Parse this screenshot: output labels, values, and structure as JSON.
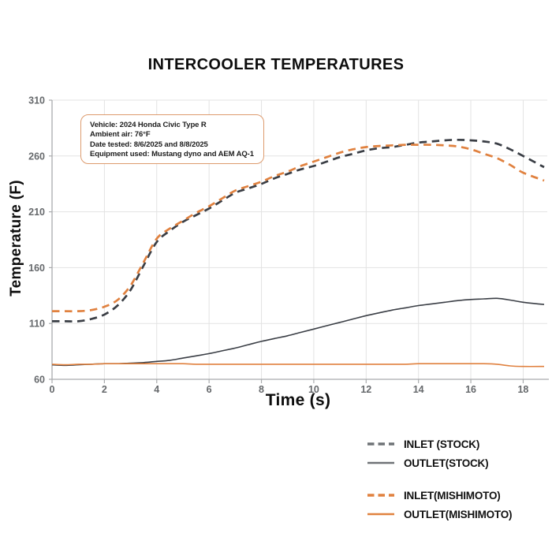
{
  "title": "INTERCOOLER TEMPERATURES",
  "annotation_box": {
    "lines": [
      "Vehicle: 2024 Honda Civic Type R",
      "Ambient air: 76°F",
      "Date tested: 8/6/2025 and 8/8/2025",
      "Equipment used: Mustang dyno and AEM AQ-1"
    ],
    "border_color": "#dd9b6e"
  },
  "chart_data": {
    "type": "line",
    "title": "INTERCOOLER TEMPERATURES",
    "xlabel": "Time (s)",
    "ylabel": "Temperature (F)",
    "xlim": [
      0,
      18.8
    ],
    "ylim": [
      60,
      310
    ],
    "x_ticks": [
      0,
      2,
      4,
      6,
      8,
      10,
      12,
      14,
      16,
      18
    ],
    "y_ticks": [
      60,
      110,
      160,
      210,
      260,
      310
    ],
    "grid": true,
    "grid_color": "#e3e3e3",
    "spine_color": "#a9abad",
    "tick_label_color": "#66696c",
    "legend_position": "bottom-right",
    "x": [
      0,
      0.5,
      1,
      1.5,
      2,
      2.5,
      3,
      3.5,
      4,
      4.5,
      5,
      5.5,
      6,
      6.5,
      7,
      7.5,
      8,
      8.5,
      9,
      9.5,
      10,
      10.5,
      11,
      11.5,
      12,
      12.5,
      13,
      13.5,
      14,
      14.5,
      15,
      15.5,
      16,
      16.5,
      17,
      17.5,
      18,
      18.8
    ],
    "series": [
      {
        "name": "INLET (STOCK)",
        "style": "dashed",
        "color": "#3a3e45",
        "legend_color": "#6f7377",
        "values": [
          112,
          112,
          112,
          114,
          118,
          126,
          140,
          162,
          183,
          193,
          201,
          207,
          213,
          220,
          227,
          231,
          235,
          240,
          244,
          248,
          251,
          255,
          259,
          262,
          265,
          267,
          268,
          270,
          272,
          273,
          274,
          274.5,
          274,
          273,
          271,
          266,
          260,
          250
        ]
      },
      {
        "name": "OUTLET(STOCK)",
        "style": "solid",
        "color": "#3a3e45",
        "legend_color": "#6f7377",
        "values": [
          73,
          72.5,
          73,
          73.5,
          74,
          74,
          74.5,
          75,
          76,
          77,
          79,
          81,
          83,
          85.5,
          88,
          91,
          94,
          96.5,
          99,
          102,
          105,
          108,
          111,
          114,
          117,
          119.5,
          122,
          124,
          126,
          127.5,
          129,
          130.5,
          131.5,
          132,
          132.5,
          131,
          129,
          127
        ]
      },
      {
        "name": "INLET(MISHIMOTO)",
        "style": "dashed",
        "color": "#e0813f",
        "legend_color": "#e0813f",
        "values": [
          121,
          121,
          121,
          122,
          125,
          131,
          144,
          165,
          186,
          195,
          202,
          209,
          215,
          222,
          229,
          233,
          237,
          242,
          246,
          251,
          255,
          259,
          263,
          266,
          268,
          269,
          269.5,
          270,
          270,
          270,
          269.5,
          268.5,
          266,
          262,
          258,
          252,
          245,
          238
        ]
      },
      {
        "name": "OUTLET(MISHIMOTO)",
        "style": "solid",
        "color": "#e0813f",
        "legend_color": "#e0813f",
        "values": [
          73.5,
          73,
          73.5,
          73.5,
          74,
          74,
          74,
          74,
          74,
          74,
          74,
          73.5,
          73.5,
          73.5,
          73.5,
          73.5,
          73.5,
          73.5,
          73.5,
          73.5,
          73.5,
          73.5,
          73.5,
          73.5,
          73.5,
          73.5,
          73.5,
          73.5,
          74,
          74,
          74,
          74,
          74,
          74,
          73.5,
          72,
          71.5,
          71.5
        ]
      }
    ]
  }
}
